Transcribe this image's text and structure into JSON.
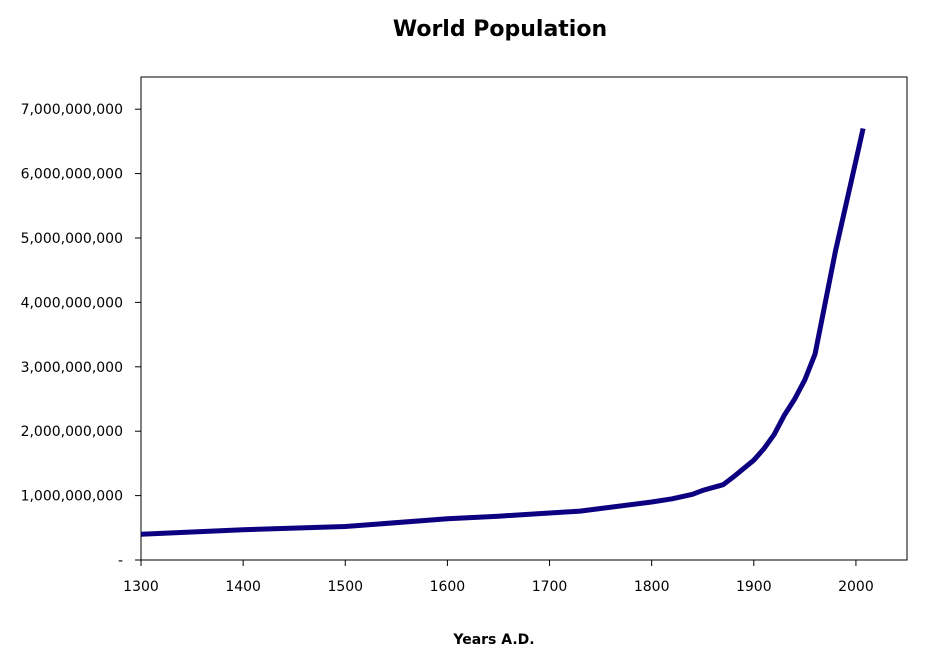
{
  "chart_data": {
    "type": "line",
    "title": "World Population",
    "xlabel": "Years A.D.",
    "ylabel": "",
    "xlim": [
      1300,
      2050
    ],
    "ylim": [
      0,
      7500000000
    ],
    "x_ticks": [
      1300,
      1400,
      1500,
      1600,
      1700,
      1800,
      1900,
      2000
    ],
    "x_tick_labels": [
      "1300",
      "1400",
      "1500",
      "1600",
      "1700",
      "1800",
      "1900",
      "2000"
    ],
    "y_ticks": [
      0,
      1000000000,
      2000000000,
      3000000000,
      4000000000,
      5000000000,
      6000000000,
      7000000000
    ],
    "y_tick_labels": [
      "-",
      "1,000,000,000",
      "2,000,000,000",
      "3,000,000,000",
      "4,000,000,000",
      "5,000,000,000",
      "6,000,000,000",
      "7,000,000,000"
    ],
    "grid": false,
    "legend": "none",
    "colors": {
      "series": "#0d0080",
      "axis": "#000000",
      "background": "#ffffff"
    },
    "series": [
      {
        "x": [
          1300,
          1400,
          1500,
          1600,
          1650,
          1700,
          1730,
          1750,
          1800,
          1820,
          1840,
          1850,
          1870,
          1880,
          1900,
          1910,
          1920,
          1930,
          1940,
          1950,
          1960,
          1970,
          1980,
          1990,
          2000,
          2007
        ],
        "values": [
          400000000,
          470000000,
          520000000,
          640000000,
          680000000,
          730000000,
          760000000,
          800000000,
          900000000,
          950000000,
          1020000000,
          1080000000,
          1170000000,
          1290000000,
          1550000000,
          1730000000,
          1950000000,
          2250000000,
          2500000000,
          2800000000,
          3200000000,
          4000000000,
          4800000000,
          5500000000,
          6200000000,
          6700000000
        ]
      }
    ]
  }
}
